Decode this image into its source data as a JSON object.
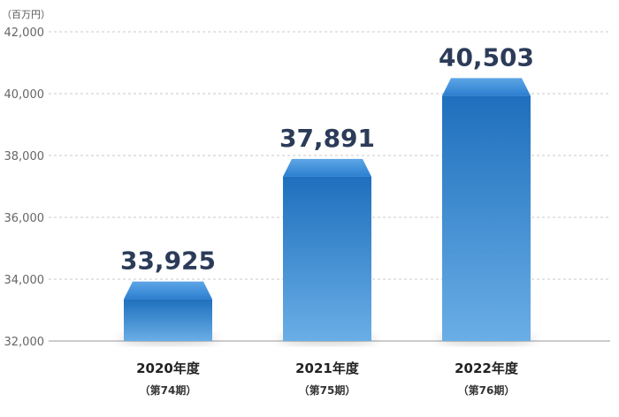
{
  "chart_data": {
    "type": "bar",
    "unit": "（百万円）",
    "categories": [
      "2020年度",
      "2021年度",
      "2022年度"
    ],
    "category_subs": [
      "（第74期）",
      "（第75期）",
      "（第76期）"
    ],
    "values": [
      33925,
      37891,
      40503
    ],
    "value_labels": [
      "33,925",
      "37,891",
      "40,503"
    ],
    "yticks": [
      32000,
      34000,
      36000,
      38000,
      40000,
      42000
    ],
    "ytick_labels": [
      "32,000",
      "34,000",
      "36,000",
      "38,000",
      "40,000",
      "42,000"
    ],
    "ylim": [
      32000,
      42000
    ],
    "grid": true,
    "colors": {
      "bar_top": "#1e6fbd",
      "bar_bottom": "#6aaee6",
      "cap_top": "#5ea6e6",
      "cap_bottom": "#2b7fd0",
      "grid": "#c8c8c8",
      "value_text": "#2b3b58"
    }
  }
}
